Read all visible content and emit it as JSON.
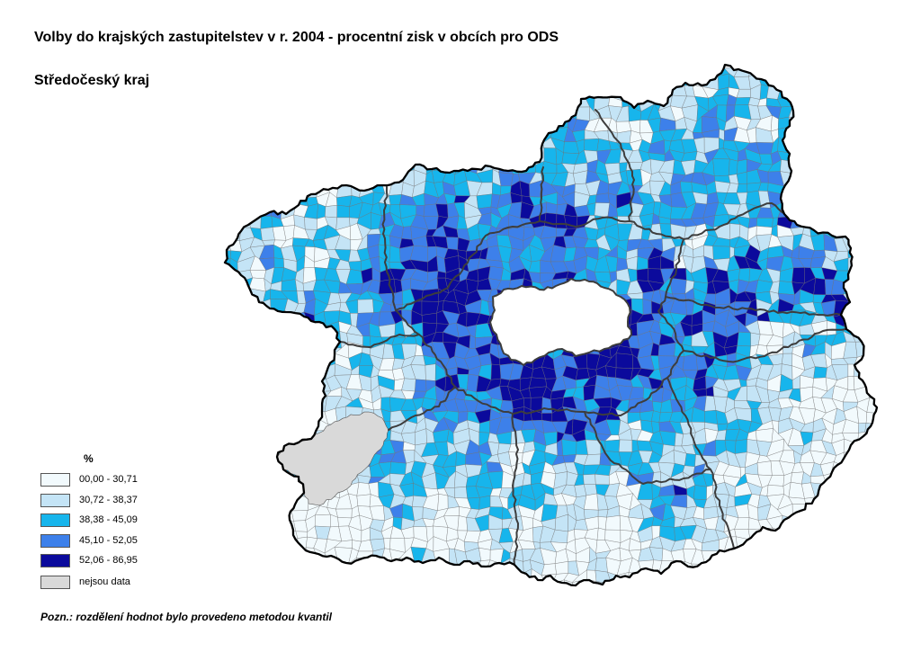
{
  "title": "Volby do krajských zastupitelstev v r. 2004 - procentní zisk v obcích pro ODS",
  "subtitle": "Středočeský kraj",
  "legend": {
    "unit": "%",
    "items": [
      {
        "label": "00,00 - 30,71",
        "color": "#f2fafd"
      },
      {
        "label": "30,72 - 38,37",
        "color": "#c4e4f6"
      },
      {
        "label": "38,38 - 45,09",
        "color": "#17b5ec"
      },
      {
        "label": "45,10 - 52,05",
        "color": "#3d80ea"
      },
      {
        "label": "52,06 - 86,95",
        "color": "#0b0a9c"
      },
      {
        "label": "nejsou data",
        "color": "#d9d9d9"
      }
    ]
  },
  "map": {
    "region_border_color": "#000000",
    "district_border_color": "#3d3d3d",
    "municipality_border_color": "#707070"
  },
  "note": "Pozn.: rozdělení hodnot bylo provedeno metodou kvantil"
}
